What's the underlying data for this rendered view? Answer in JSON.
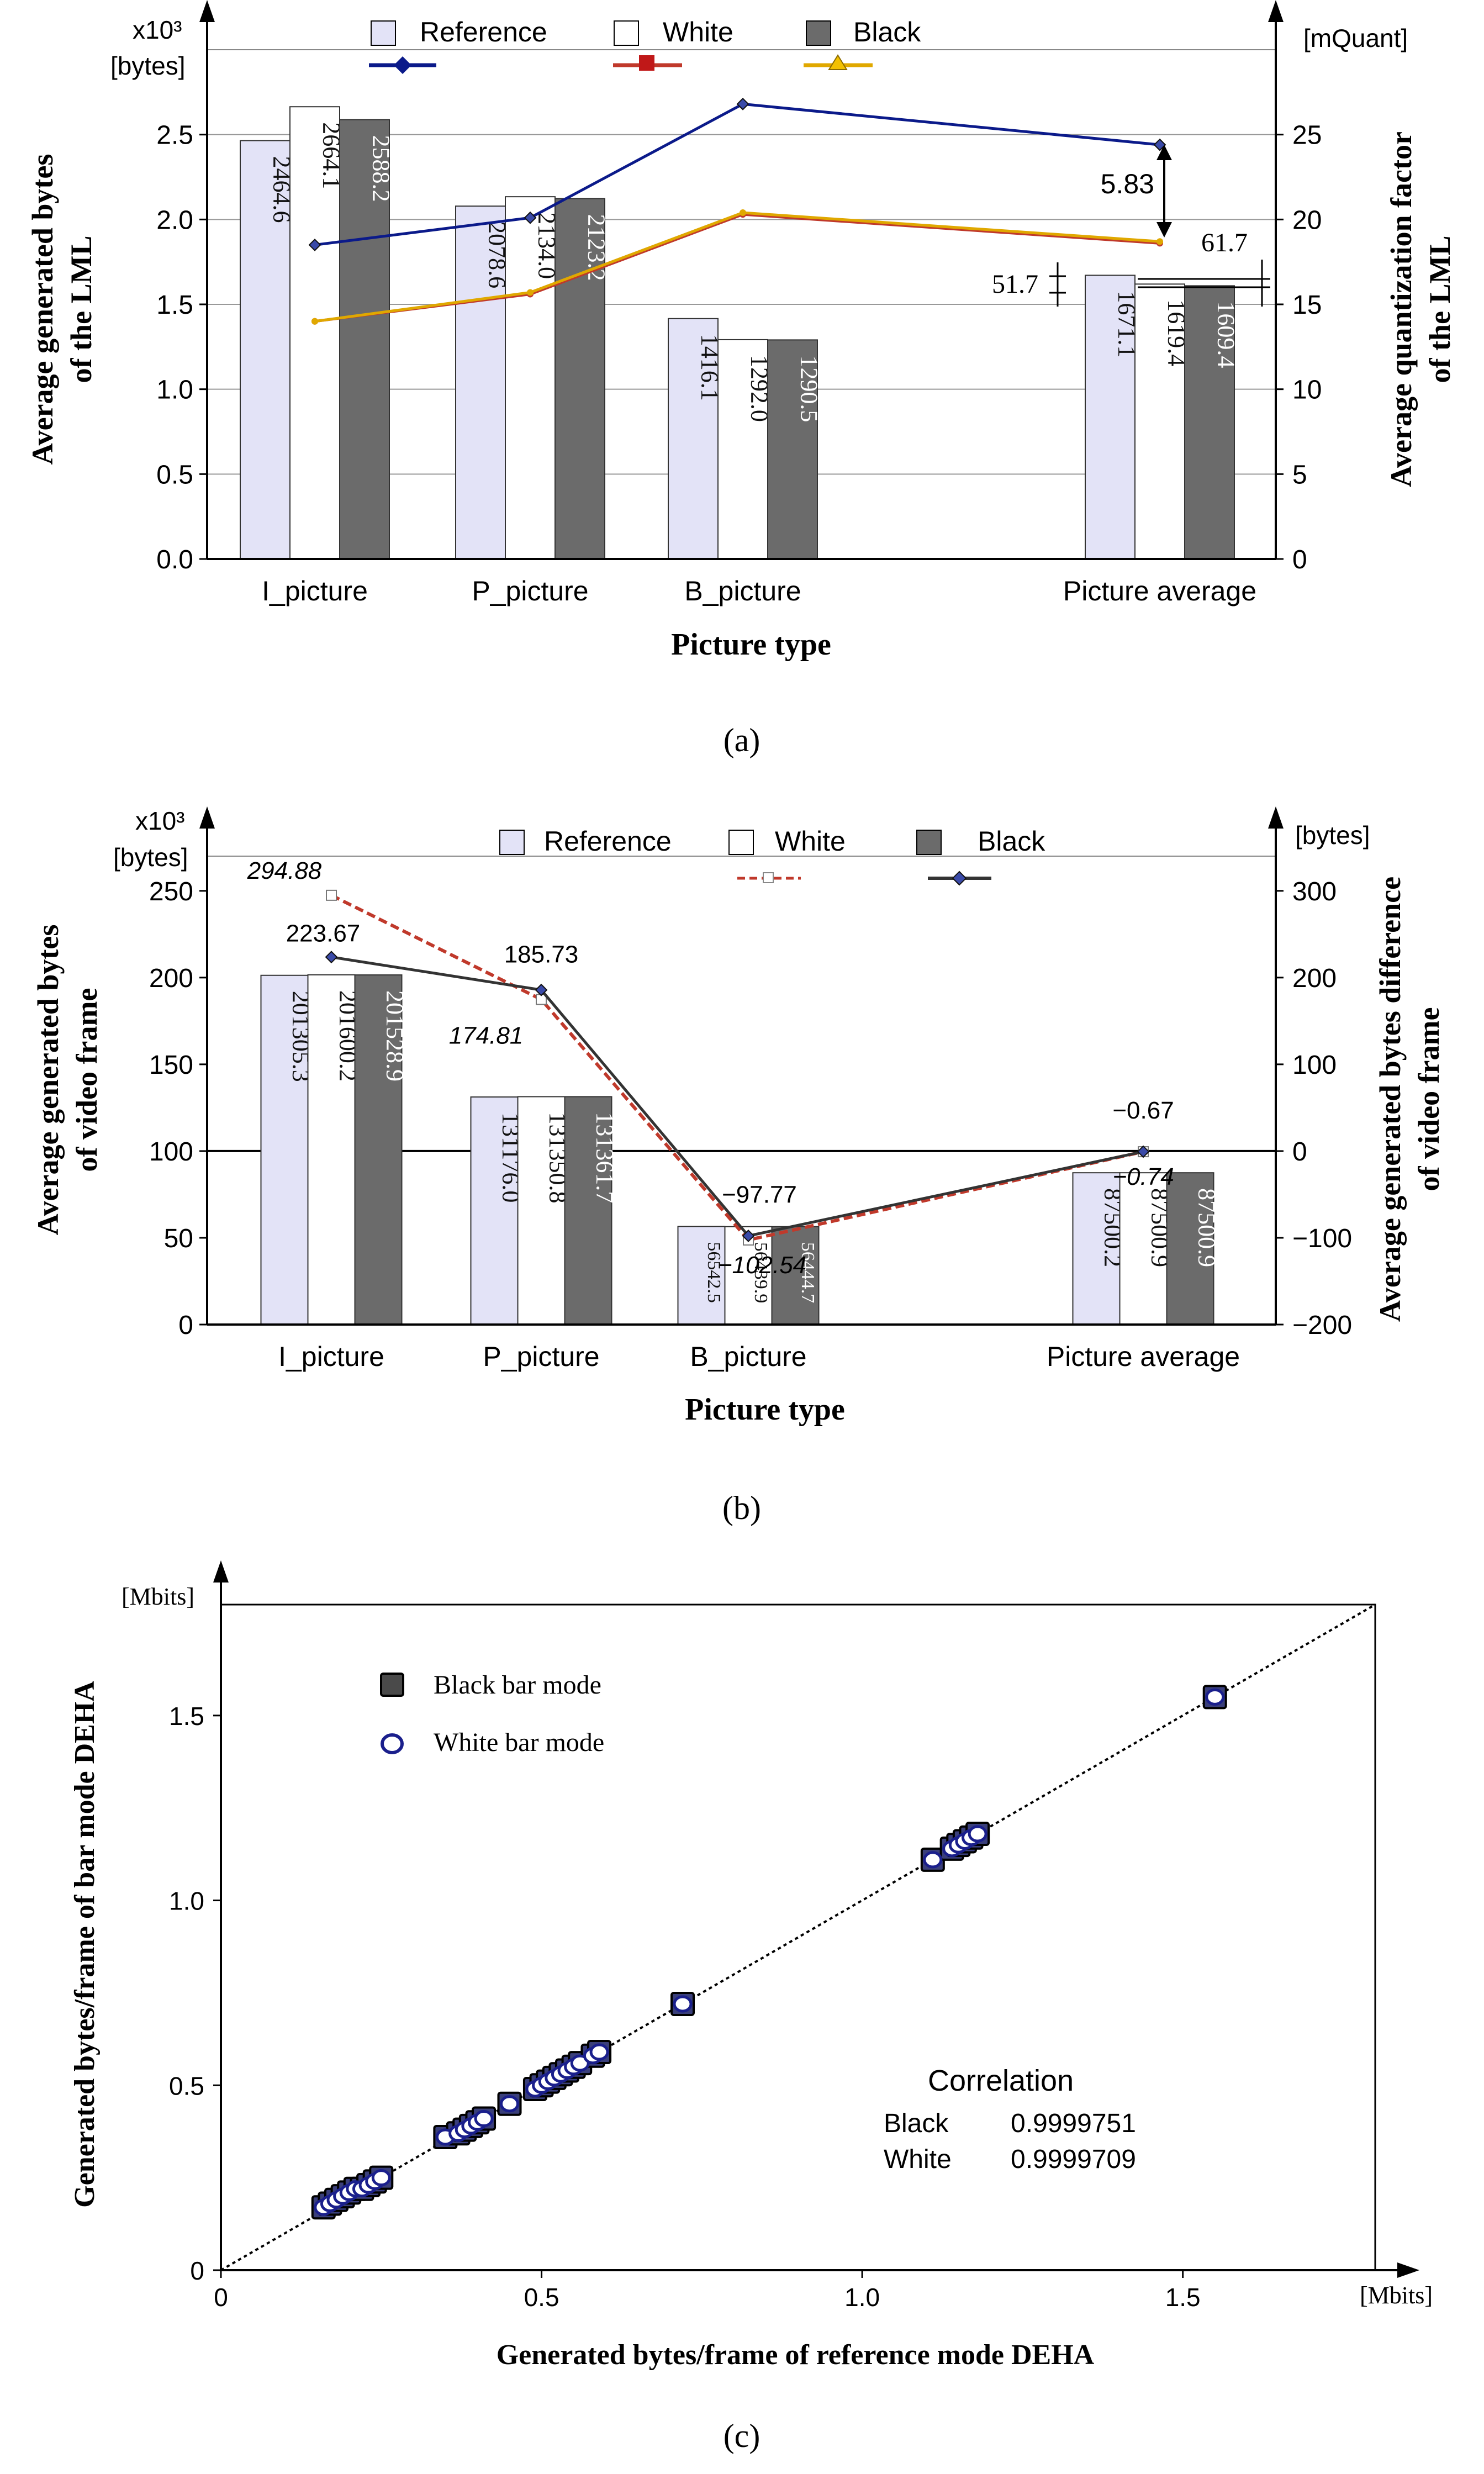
{
  "chart_data": [
    {
      "panel": "(a)",
      "type": "bar+line",
      "units_left": "x10³",
      "units_left2": "[bytes]",
      "units_right": "[mQuant]",
      "ylabel_left": [
        "Average generated bytes",
        "of the LML"
      ],
      "ylabel_right": [
        "Average quantization factor",
        "of the LML"
      ],
      "xlabel": "Picture type",
      "categories": [
        "I_picture",
        "P_picture",
        "B_picture",
        "Picture average"
      ],
      "y_left_ticks": [
        "0.0",
        "0.5",
        "1.0",
        "1.5",
        "2.0",
        "2.5"
      ],
      "y_right_ticks": [
        "0",
        "5",
        "10",
        "15",
        "20",
        "25"
      ],
      "ylim_left": [
        0,
        3.0
      ],
      "ylim_right": [
        0,
        30
      ],
      "bar_series": [
        {
          "name": "Reference",
          "values": [
            2464.6,
            2078.6,
            1416.1,
            1671.1
          ],
          "labels": [
            "2464.6",
            "2078.6",
            "1416.1",
            "1671.1"
          ],
          "color": "#e3e3f7"
        },
        {
          "name": "White",
          "values": [
            2664.1,
            2134.0,
            1292.0,
            1619.4
          ],
          "labels": [
            "2664.1",
            "2134.0",
            "1292.0",
            "1619.4"
          ],
          "color": "#ffffff"
        },
        {
          "name": "Black",
          "values": [
            2588.2,
            2123.2,
            1290.5,
            1609.4
          ],
          "labels": [
            "2588.2",
            "2123.2",
            "1290.5",
            "1609.4"
          ],
          "color": "#6b6b6b"
        }
      ],
      "line_series": [
        {
          "name": "Reference",
          "values": [
            18.5,
            20.1,
            26.8,
            24.4
          ],
          "color": "#0b1a8a"
        },
        {
          "name": "White",
          "values": [
            14.0,
            15.6,
            20.3,
            18.6
          ],
          "color": "#c0392b"
        },
        {
          "name": "Black",
          "values": [
            14.0,
            15.7,
            20.4,
            18.7
          ],
          "color": "#e0a800"
        }
      ],
      "annotations": {
        "quant_gap": "5.83",
        "ref_white_gap": "51.7",
        "white_black_gap": "61.7"
      }
    },
    {
      "panel": "(b)",
      "type": "bar+line",
      "units_left": "x10³",
      "units_left2": "[bytes]",
      "units_right": "[bytes]",
      "ylabel_left": [
        "Average generated bytes",
        "of video frame"
      ],
      "ylabel_right": [
        "Average generated bytes difference",
        "of video frame"
      ],
      "xlabel": "Picture type",
      "categories": [
        "I_picture",
        "P_picture",
        "B_picture",
        "Picture average"
      ],
      "y_left_ticks": [
        "0",
        "50",
        "100",
        "150",
        "200",
        "250"
      ],
      "y_right_ticks": [
        "-200",
        "-100",
        "0",
        "100",
        "200",
        "300"
      ],
      "ylim_left": [
        0,
        270
      ],
      "ylim_right": [
        -200,
        340
      ],
      "bar_series": [
        {
          "name": "Reference",
          "values": [
            201305.3,
            131176.0,
            56542.5,
            87500.2
          ],
          "labels": [
            "201305.3",
            "131176.0",
            "56542.5",
            "87500.2"
          ],
          "color": "#e3e3f7"
        },
        {
          "name": "White",
          "values": [
            201600.2,
            131350.8,
            56439.9,
            87500.9
          ],
          "labels": [
            "201600.2",
            "131350.8",
            "56439.9",
            "87500.9"
          ],
          "color": "#ffffff"
        },
        {
          "name": "Black",
          "values": [
            201528.9,
            131361.7,
            56444.7,
            87500.9
          ],
          "labels": [
            "201528.9",
            "131361.7",
            "56444.7",
            "87500.9"
          ],
          "color": "#6b6b6b"
        }
      ],
      "line_series": [
        {
          "name": "White",
          "values": [
            294.88,
            174.81,
            -102.54,
            -0.74
          ],
          "labels": [
            "294.88",
            "174.81",
            "−102.54",
            "−0.74"
          ],
          "color": "#c0392b",
          "dashed": true
        },
        {
          "name": "Black",
          "values": [
            223.67,
            185.73,
            -97.77,
            -0.67
          ],
          "labels": [
            "223.67",
            "185.73",
            "−97.77",
            "−0.67"
          ],
          "color": "#333333",
          "dashed": false
        }
      ]
    },
    {
      "panel": "(c)",
      "type": "scatter",
      "units_x": "[Mbits]",
      "units_y": "[Mbits]",
      "xlabel": "Generated bytes/frame of reference mode DEHA",
      "ylabel": "Generated bytes/frame of bar mode DEHA",
      "x_ticks": [
        "0",
        "0.5",
        "1.0",
        "1.5"
      ],
      "y_ticks": [
        "0",
        "0.5",
        "1.0",
        "1.5"
      ],
      "xlim": [
        0,
        1.8
      ],
      "ylim": [
        0,
        1.8
      ],
      "series": [
        {
          "name": "Black bar mode",
          "x": [
            0.16,
            0.17,
            0.18,
            0.19,
            0.2,
            0.21,
            0.22,
            0.23,
            0.24,
            0.25,
            0.35,
            0.37,
            0.38,
            0.39,
            0.4,
            0.41,
            0.45,
            0.49,
            0.5,
            0.51,
            0.52,
            0.53,
            0.54,
            0.55,
            0.56,
            0.58,
            0.59,
            0.72,
            1.11,
            1.14,
            1.15,
            1.16,
            1.17,
            1.18,
            1.55
          ],
          "y": [
            0.17,
            0.18,
            0.19,
            0.2,
            0.21,
            0.22,
            0.22,
            0.23,
            0.24,
            0.25,
            0.36,
            0.37,
            0.38,
            0.39,
            0.4,
            0.41,
            0.45,
            0.49,
            0.5,
            0.51,
            0.52,
            0.53,
            0.54,
            0.55,
            0.56,
            0.58,
            0.59,
            0.72,
            1.11,
            1.14,
            1.15,
            1.16,
            1.17,
            1.18,
            1.55
          ]
        },
        {
          "name": "White bar mode",
          "x": [
            0.16,
            0.17,
            0.18,
            0.19,
            0.2,
            0.21,
            0.22,
            0.23,
            0.24,
            0.25,
            0.35,
            0.37,
            0.38,
            0.39,
            0.4,
            0.41,
            0.45,
            0.49,
            0.5,
            0.51,
            0.52,
            0.53,
            0.54,
            0.55,
            0.56,
            0.58,
            0.59,
            0.72,
            1.11,
            1.14,
            1.15,
            1.16,
            1.17,
            1.18,
            1.55
          ],
          "y": [
            0.17,
            0.18,
            0.19,
            0.2,
            0.21,
            0.22,
            0.22,
            0.23,
            0.24,
            0.25,
            0.36,
            0.37,
            0.38,
            0.39,
            0.4,
            0.41,
            0.45,
            0.49,
            0.5,
            0.51,
            0.52,
            0.53,
            0.54,
            0.55,
            0.56,
            0.58,
            0.59,
            0.72,
            1.11,
            1.14,
            1.15,
            1.16,
            1.17,
            1.18,
            1.55
          ]
        }
      ],
      "correlation": {
        "title": "Correlation",
        "rows": [
          {
            "label": "Black",
            "value": "0.9999751"
          },
          {
            "label": "White",
            "value": "0.9999709"
          }
        ]
      }
    }
  ],
  "panel_labels": {
    "a": "(a)",
    "b": "(b)",
    "c": "(c)"
  },
  "legend_a": {
    "reference": "Reference",
    "white": "White",
    "black": "Black"
  },
  "legend_b": {
    "reference": "Reference",
    "white": "White",
    "black": "Black"
  },
  "legend_c": {
    "black": "Black bar mode",
    "white": "White bar mode"
  }
}
